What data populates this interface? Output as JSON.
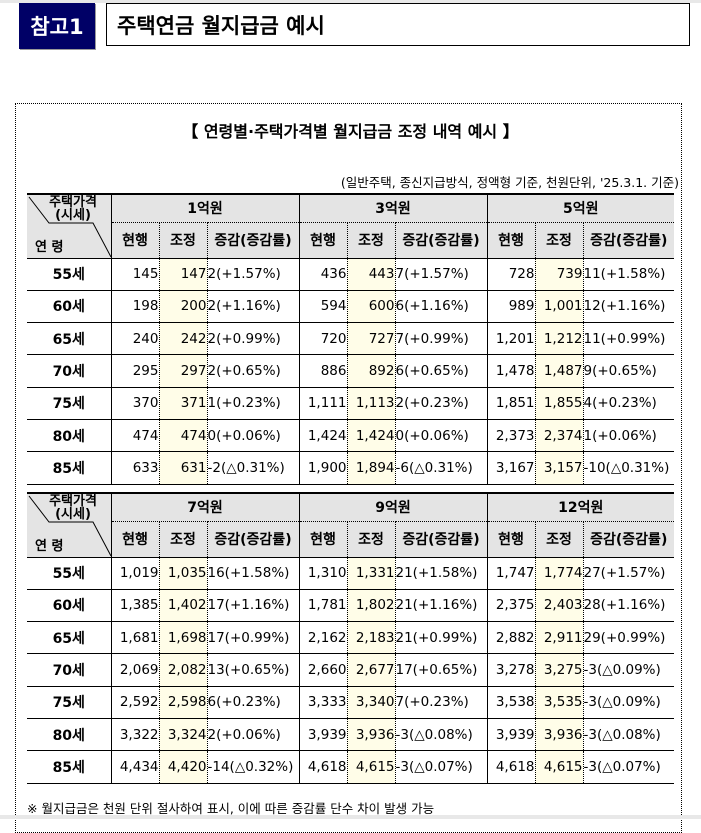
{
  "header": {
    "badge": "참고1",
    "title": "주택연금 월지급금 예시"
  },
  "section": {
    "subtitle": "【 연령별·주택가격별 월지급금 조정 내역 예시 】",
    "note": "(일반주택, 종신지급방식, 정액형 기준, 천원단위, '25.3.1. 기준)",
    "footnote": "※ 월지급금은 천원 단위 절사하여 표시, 이에 따른 증감률 단수 차이 발생 가능"
  },
  "table_labels": {
    "corner_top_1": "주택가격",
    "corner_top_2": "(시세)",
    "corner_bottom": "연  령",
    "col_current": "현행",
    "col_adjusted": "조정",
    "col_change": "증감(증감률)"
  },
  "colors": {
    "badge_bg": "#000066",
    "header_bg": "#e4e4e4",
    "adjusted_col_bg": "#fffde8"
  },
  "tables": [
    {
      "groups": [
        "1억원",
        "3억원",
        "5억원"
      ],
      "rows": [
        {
          "age": "55세",
          "cells": [
            [
              "145",
              "147",
              "2(+1.57%)"
            ],
            [
              "436",
              "443",
              "7(+1.57%)"
            ],
            [
              "728",
              "739",
              "11(+1.58%)"
            ]
          ]
        },
        {
          "age": "60세",
          "cells": [
            [
              "198",
              "200",
              "2(+1.16%)"
            ],
            [
              "594",
              "600",
              "6(+1.16%)"
            ],
            [
              "989",
              "1,001",
              "12(+1.16%)"
            ]
          ]
        },
        {
          "age": "65세",
          "cells": [
            [
              "240",
              "242",
              "2(+0.99%)"
            ],
            [
              "720",
              "727",
              "7(+0.99%)"
            ],
            [
              "1,201",
              "1,212",
              "11(+0.99%)"
            ]
          ]
        },
        {
          "age": "70세",
          "cells": [
            [
              "295",
              "297",
              "2(+0.65%)"
            ],
            [
              "886",
              "892",
              "6(+0.65%)"
            ],
            [
              "1,478",
              "1,487",
              "9(+0.65%)"
            ]
          ]
        },
        {
          "age": "75세",
          "cells": [
            [
              "370",
              "371",
              "1(+0.23%)"
            ],
            [
              "1,111",
              "1,113",
              "2(+0.23%)"
            ],
            [
              "1,851",
              "1,855",
              "4(+0.23%)"
            ]
          ]
        },
        {
          "age": "80세",
          "cells": [
            [
              "474",
              "474",
              "0(+0.06%)"
            ],
            [
              "1,424",
              "1,424",
              "0(+0.06%)"
            ],
            [
              "2,373",
              "2,374",
              "1(+0.06%)"
            ]
          ]
        },
        {
          "age": "85세",
          "cells": [
            [
              "633",
              "631",
              "-2(△0.31%)"
            ],
            [
              "1,900",
              "1,894",
              "-6(△0.31%)"
            ],
            [
              "3,167",
              "3,157",
              "-10(△0.31%)"
            ]
          ]
        }
      ]
    },
    {
      "groups": [
        "7억원",
        "9억원",
        "12억원"
      ],
      "rows": [
        {
          "age": "55세",
          "cells": [
            [
              "1,019",
              "1,035",
              "16(+1.58%)"
            ],
            [
              "1,310",
              "1,331",
              "21(+1.58%)"
            ],
            [
              "1,747",
              "1,774",
              "27(+1.57%)"
            ]
          ]
        },
        {
          "age": "60세",
          "cells": [
            [
              "1,385",
              "1,402",
              "17(+1.16%)"
            ],
            [
              "1,781",
              "1,802",
              "21(+1.16%)"
            ],
            [
              "2,375",
              "2,403",
              "28(+1.16%)"
            ]
          ]
        },
        {
          "age": "65세",
          "cells": [
            [
              "1,681",
              "1,698",
              "17(+0.99%)"
            ],
            [
              "2,162",
              "2,183",
              "21(+0.99%)"
            ],
            [
              "2,882",
              "2,911",
              "29(+0.99%)"
            ]
          ]
        },
        {
          "age": "70세",
          "cells": [
            [
              "2,069",
              "2,082",
              "13(+0.65%)"
            ],
            [
              "2,660",
              "2,677",
              "17(+0.65%)"
            ],
            [
              "3,278",
              "3,275",
              "-3(△0.09%)"
            ]
          ]
        },
        {
          "age": "75세",
          "cells": [
            [
              "2,592",
              "2,598",
              "6(+0.23%)"
            ],
            [
              "3,333",
              "3,340",
              "7(+0.23%)"
            ],
            [
              "3,538",
              "3,535",
              "-3(△0.09%)"
            ]
          ]
        },
        {
          "age": "80세",
          "cells": [
            [
              "3,322",
              "3,324",
              "2(+0.06%)"
            ],
            [
              "3,939",
              "3,936",
              "-3(△0.08%)"
            ],
            [
              "3,939",
              "3,936",
              "-3(△0.08%)"
            ]
          ]
        },
        {
          "age": "85세",
          "cells": [
            [
              "4,434",
              "4,420",
              "-14(△0.32%)"
            ],
            [
              "4,618",
              "4,615",
              "-3(△0.07%)"
            ],
            [
              "4,618",
              "4,615",
              "-3(△0.07%)"
            ]
          ]
        }
      ]
    }
  ]
}
